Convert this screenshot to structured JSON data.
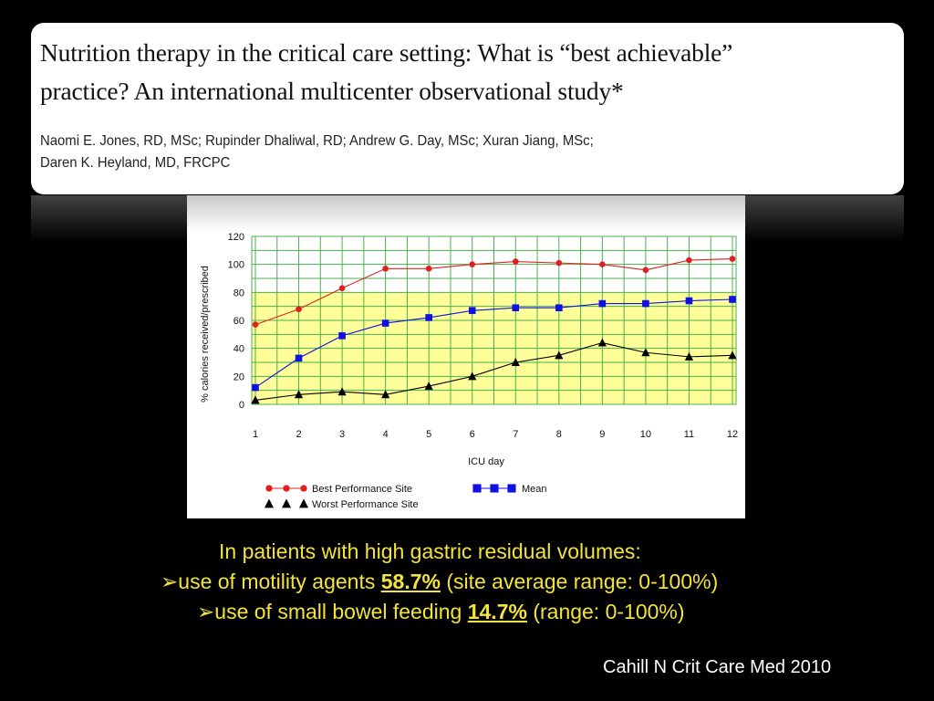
{
  "paper": {
    "title_line1": "Nutrition therapy in the critical care setting: What is “best achievable”",
    "title_line2": "practice? An international multicenter observational study*",
    "authors_line1": "Naomi E. Jones, RD, MSc; Rupinder Dhaliwal, RD; Andrew G. Day, MSc; Xuran Jiang, MSc;",
    "authors_line2": "Daren K. Heyland, MD, FRCPC"
  },
  "chart_data": {
    "type": "line",
    "title": "",
    "xlabel": "ICU  day",
    "ylabel": "%  calories  received/prescribed",
    "x": [
      1,
      2,
      3,
      4,
      5,
      6,
      7,
      8,
      9,
      10,
      11,
      12
    ],
    "xlim": [
      1,
      12
    ],
    "ylim": [
      0,
      120
    ],
    "yticks": [
      0,
      20,
      40,
      60,
      80,
      100,
      120
    ],
    "grid": true,
    "shaded_band": {
      "from": 0,
      "to": 80,
      "color": "#ffff99"
    },
    "legend_position": "bottom",
    "series": [
      {
        "name": "Best  Performance  Site",
        "color": "#e02020",
        "marker": "circle",
        "values": [
          57,
          68,
          83,
          97,
          97,
          100,
          102,
          101,
          100,
          96,
          103,
          104
        ]
      },
      {
        "name": "Mean",
        "color": "#1010e0",
        "marker": "square",
        "values": [
          12,
          33,
          49,
          58,
          62,
          67,
          69,
          69,
          72,
          72,
          74,
          75
        ]
      },
      {
        "name": "Worst  Performance  Site",
        "color": "#000000",
        "marker": "triangle",
        "values": [
          3,
          7,
          9,
          7,
          13,
          20,
          30,
          35,
          44,
          37,
          34,
          35
        ]
      }
    ]
  },
  "summary": {
    "heading": "In patients with high gastric residual volumes:",
    "bullet_symbol": "➢",
    "bullet1_pre": "use of motility agents ",
    "bullet1_value": "58.7%",
    "bullet1_post": " (site average range: 0-100%)",
    "bullet2_pre": "use of small bowel feeding  ",
    "bullet2_value": "14.7%",
    "bullet2_post": " (range:  0-100%)"
  },
  "citation": "Cahill N Crit Care Med 2010"
}
